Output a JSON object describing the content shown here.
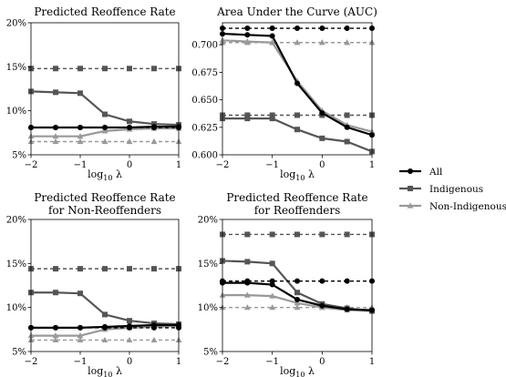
{
  "legend": {
    "placement": "right",
    "entries": [
      {
        "label": "All",
        "color": "#000000",
        "marker": "circle"
      },
      {
        "label": "Indigenous",
        "color": "#555555",
        "marker": "square"
      },
      {
        "label": "Non-Indigenous",
        "color": "#999999",
        "marker": "triangle"
      }
    ]
  },
  "chart_data": [
    {
      "type": "line",
      "title": "Predicted Reoffence Rate",
      "title2": "",
      "xlabel_base": "log",
      "xlabel_sub": "10",
      "xlabel_var": " λ",
      "xlim": [
        -2,
        1
      ],
      "ylim": [
        5,
        20
      ],
      "xticks": [
        -2,
        -1,
        0,
        1
      ],
      "yticks": [
        5,
        10,
        15,
        20
      ],
      "ytick_labels": [
        "5%",
        "10%",
        "15%",
        "20%"
      ],
      "x": [
        -2,
        -1.5,
        -1,
        -0.5,
        0,
        0.5,
        1
      ],
      "series": [
        {
          "name": "All",
          "values": [
            8.1,
            8.1,
            8.1,
            8.1,
            8.1,
            8.2,
            8.2
          ],
          "dashed": [
            8.1,
            8.1,
            8.1,
            8.1,
            8.1,
            8.1,
            8.1
          ]
        },
        {
          "name": "Indigenous",
          "values": [
            12.2,
            12.1,
            12.0,
            9.6,
            8.8,
            8.5,
            8.4
          ],
          "dashed": [
            14.8,
            14.8,
            14.8,
            14.8,
            14.8,
            14.8,
            14.8
          ]
        },
        {
          "name": "Non-Indigenous",
          "values": [
            7.1,
            7.1,
            7.1,
            7.7,
            7.9,
            8.0,
            8.0
          ],
          "dashed": [
            6.5,
            6.5,
            6.5,
            6.5,
            6.5,
            6.5,
            6.5
          ]
        }
      ]
    },
    {
      "type": "line",
      "title": "Area Under the Curve (AUC)",
      "title2": "",
      "xlabel_base": "log",
      "xlabel_sub": "10",
      "xlabel_var": " λ",
      "xlim": [
        -2,
        1
      ],
      "ylim": [
        0.6,
        0.72
      ],
      "xticks": [
        -2,
        -1,
        0,
        1
      ],
      "yticks": [
        0.6,
        0.625,
        0.65,
        0.675,
        0.7
      ],
      "ytick_labels": [
        "0.600",
        "0.625",
        "0.650",
        "0.675",
        "0.700"
      ],
      "x": [
        -2,
        -1.5,
        -1,
        -0.5,
        0,
        0.5,
        1
      ],
      "series": [
        {
          "name": "All",
          "values": [
            0.71,
            0.709,
            0.708,
            0.665,
            0.638,
            0.625,
            0.618
          ],
          "dashed": [
            0.715,
            0.715,
            0.715,
            0.715,
            0.715,
            0.715,
            0.715
          ]
        },
        {
          "name": "Indigenous",
          "values": [
            0.633,
            0.633,
            0.633,
            0.623,
            0.615,
            0.612,
            0.603
          ],
          "dashed": [
            0.636,
            0.636,
            0.636,
            0.636,
            0.636,
            0.636,
            0.636
          ]
        },
        {
          "name": "Non-Indigenous",
          "values": [
            0.704,
            0.703,
            0.702,
            0.667,
            0.64,
            0.627,
            0.621
          ],
          "dashed": [
            0.702,
            0.702,
            0.702,
            0.702,
            0.702,
            0.702,
            0.702
          ]
        }
      ]
    },
    {
      "type": "line",
      "title": "Predicted Reoffence Rate",
      "title2": "for Non-Reoffenders",
      "xlabel_base": "log",
      "xlabel_sub": "10",
      "xlabel_var": " λ",
      "xlim": [
        -2,
        1
      ],
      "ylim": [
        5,
        20
      ],
      "xticks": [
        -2,
        -1,
        0,
        1
      ],
      "yticks": [
        5,
        10,
        15,
        20
      ],
      "ytick_labels": [
        "5%",
        "10%",
        "15%",
        "20%"
      ],
      "x": [
        -2,
        -1.5,
        -1,
        -0.5,
        0,
        0.5,
        1
      ],
      "series": [
        {
          "name": "All",
          "values": [
            7.7,
            7.7,
            7.7,
            7.8,
            7.9,
            8.0,
            8.0
          ],
          "dashed": [
            7.7,
            7.7,
            7.7,
            7.7,
            7.7,
            7.7,
            7.7
          ]
        },
        {
          "name": "Indigenous",
          "values": [
            11.7,
            11.7,
            11.6,
            9.2,
            8.5,
            8.2,
            8.1
          ],
          "dashed": [
            14.4,
            14.4,
            14.4,
            14.4,
            14.4,
            14.4,
            14.4
          ]
        },
        {
          "name": "Non-Indigenous",
          "values": [
            6.8,
            6.8,
            6.8,
            7.5,
            7.7,
            7.8,
            7.9
          ],
          "dashed": [
            6.3,
            6.3,
            6.3,
            6.3,
            6.3,
            6.3,
            6.3
          ]
        }
      ]
    },
    {
      "type": "line",
      "title": "Predicted Reoffence Rate",
      "title2": "for Reoffenders",
      "xlabel_base": "log",
      "xlabel_sub": "10",
      "xlabel_var": " λ",
      "xlim": [
        -2,
        1
      ],
      "ylim": [
        5,
        20
      ],
      "xticks": [
        -2,
        -1,
        0,
        1
      ],
      "yticks": [
        5,
        10,
        15,
        20
      ],
      "ytick_labels": [
        "5%",
        "10%",
        "15%",
        "20%"
      ],
      "x": [
        -2,
        -1.5,
        -1,
        -0.5,
        0,
        0.5,
        1
      ],
      "series": [
        {
          "name": "All",
          "values": [
            12.8,
            12.8,
            12.6,
            10.9,
            10.2,
            9.8,
            9.7
          ],
          "dashed": [
            13.0,
            13.0,
            13.0,
            13.0,
            13.0,
            13.0,
            13.0
          ]
        },
        {
          "name": "Indigenous",
          "values": [
            15.3,
            15.2,
            15.0,
            11.7,
            10.4,
            9.9,
            9.6
          ],
          "dashed": [
            18.3,
            18.3,
            18.3,
            18.3,
            18.3,
            18.3,
            18.3
          ]
        },
        {
          "name": "Non-Indigenous",
          "values": [
            11.4,
            11.4,
            11.3,
            10.5,
            10.0,
            9.7,
            9.6
          ],
          "dashed": [
            10.0,
            10.0,
            10.0,
            10.0,
            10.0,
            10.0,
            10.0
          ]
        }
      ]
    }
  ]
}
